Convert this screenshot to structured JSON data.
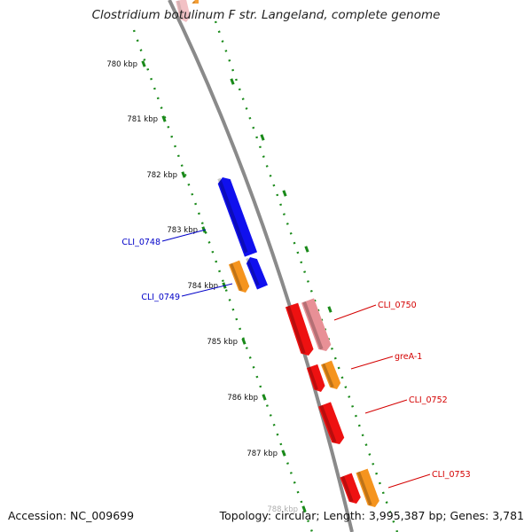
{
  "title": "Clostridium botulinum F str. Langeland, complete genome",
  "footer": {
    "accession": "Accession: NC_009699",
    "summary": "Topology: circular; Length: 3,995,387 bp; Genes: 3,781"
  },
  "colors": {
    "backbone": "#8a8a8a",
    "ruler": "#1a8a1a",
    "forward_strand": "#1010ee",
    "reverse_strand": "#ee1111",
    "faded_reverse": "#e89096",
    "other_gene": "#f5941e",
    "label_forward": "#0000c8",
    "label_reverse": "#d40000"
  },
  "ruler": {
    "ticks": [
      "780 kbp",
      "781 kbp",
      "782 kbp",
      "783 kbp",
      "784 kbp",
      "785 kbp",
      "786 kbp",
      "787 kbp",
      "788 kbp"
    ]
  },
  "genes": [
    {
      "name": "CLI_0748",
      "strand": "forward"
    },
    {
      "name": "CLI_0749",
      "strand": "forward"
    },
    {
      "name": "CLI_0750",
      "strand": "reverse"
    },
    {
      "name": "greA-1",
      "strand": "reverse"
    },
    {
      "name": "CLI_0752",
      "strand": "reverse"
    },
    {
      "name": "CLI_0753",
      "strand": "reverse"
    }
  ]
}
